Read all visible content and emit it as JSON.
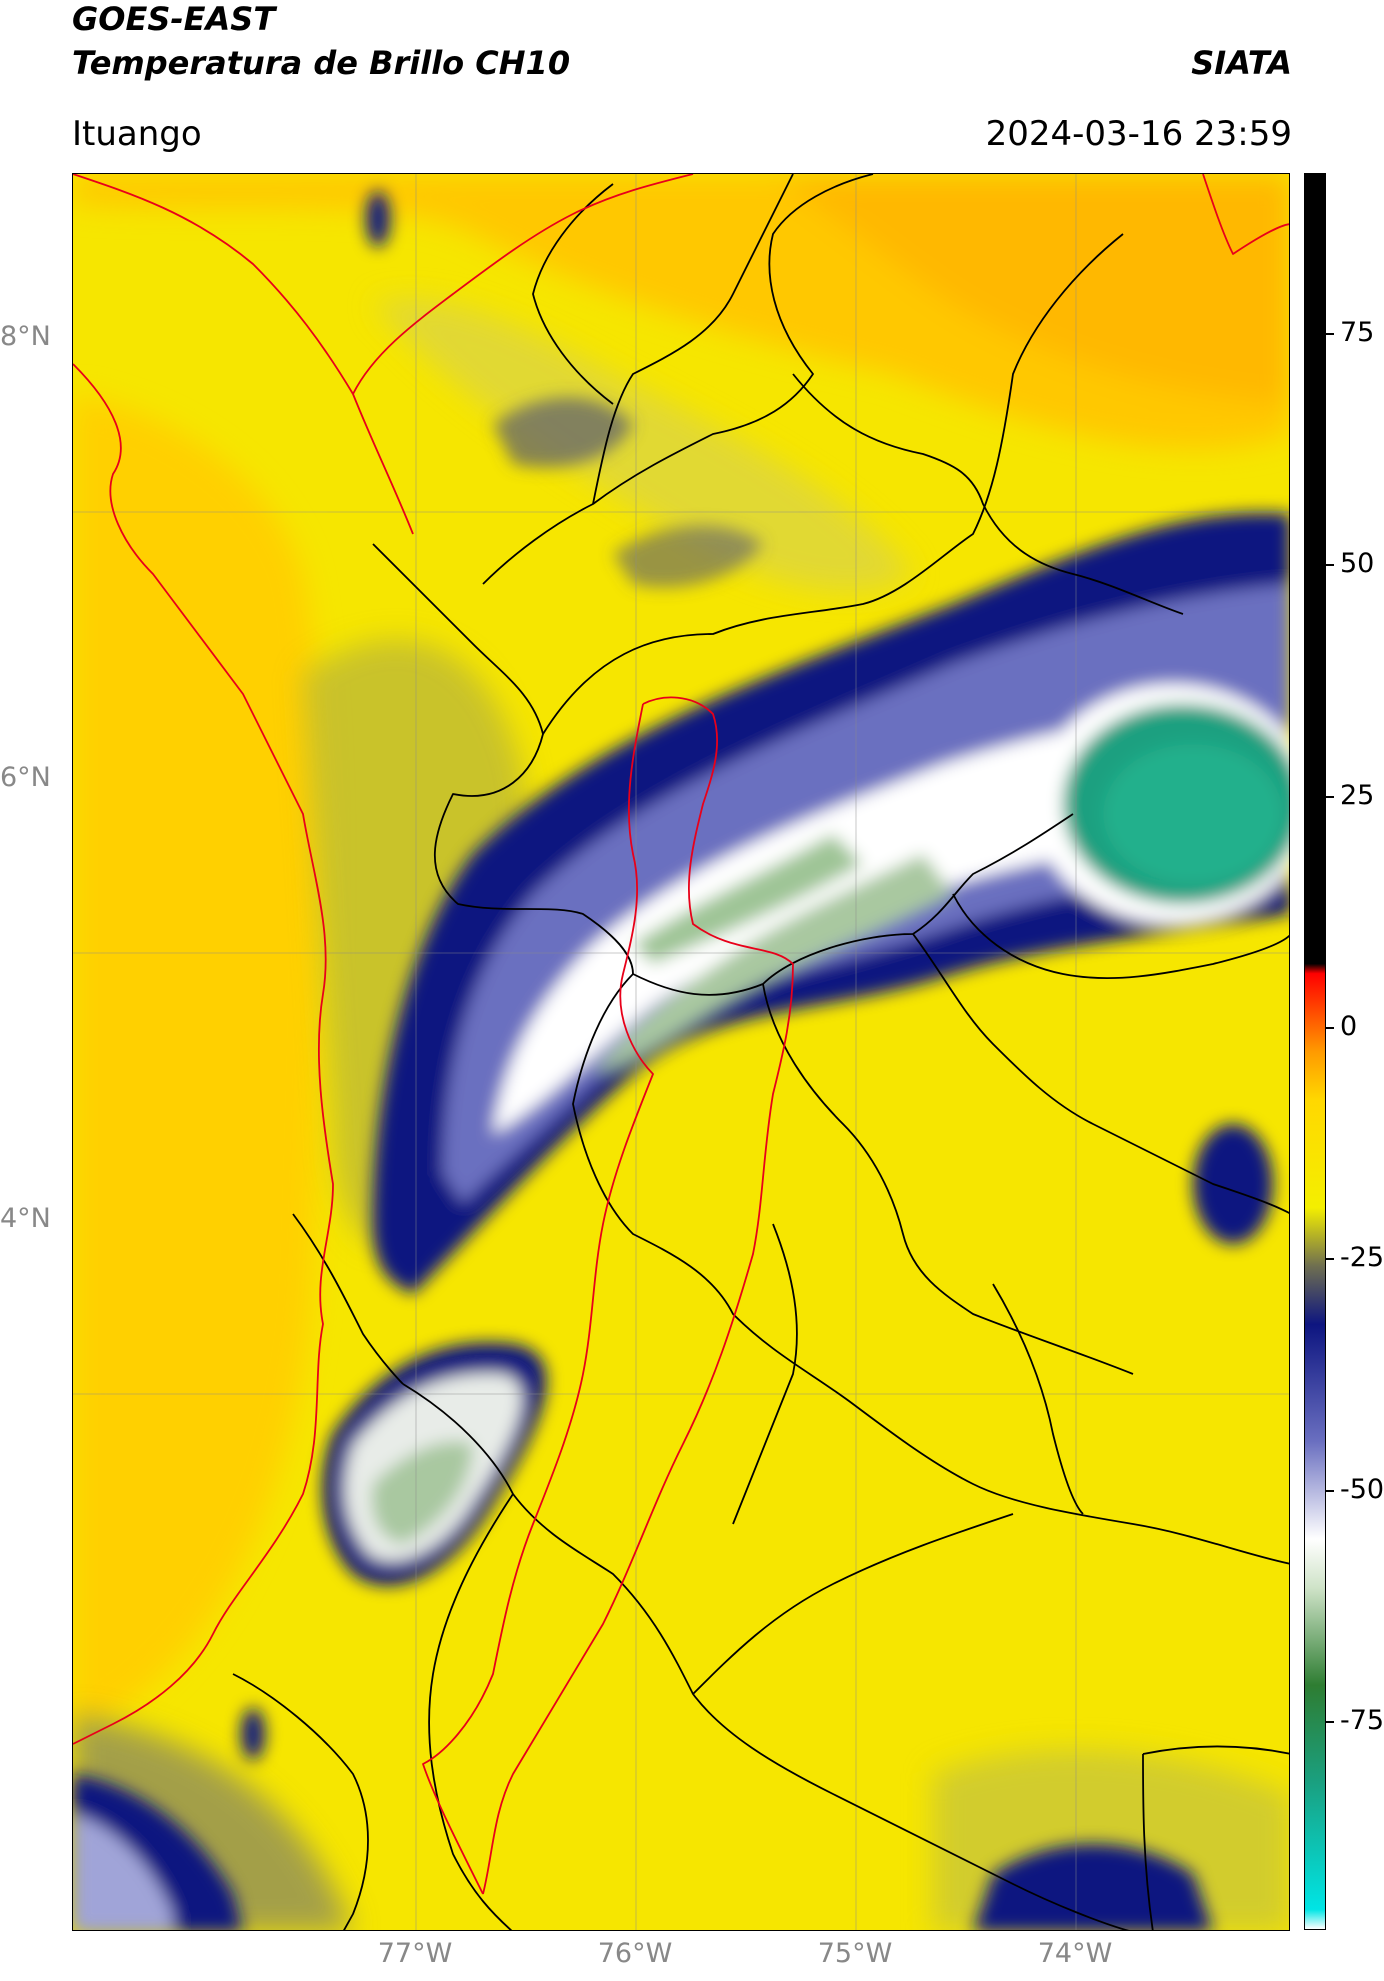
{
  "header": {
    "satellite": "GOES-EAST",
    "product": "Temperatura de Brillo CH10",
    "agency": "SIATA",
    "location": "Ituango",
    "datetime": "2024-03-16 23:59"
  },
  "axes": {
    "lat_labels": [
      "8°N",
      "6°N",
      "4°N"
    ],
    "lon_labels": [
      "77°W",
      "76°W",
      "75°W",
      "74°W"
    ]
  },
  "colorbar": {
    "ticks": [
      "75",
      "50",
      "25",
      "0",
      "-25",
      "-50",
      "-75"
    ],
    "stops": [
      {
        "value": -90,
        "color": "#ffffff"
      },
      {
        "value": -88,
        "color": "#00e5e5"
      },
      {
        "value": -75,
        "color": "#1aa080"
      },
      {
        "value": -65,
        "color": "#2e7d32"
      },
      {
        "value": -55,
        "color": "#cfe3c8"
      },
      {
        "value": -50,
        "color": "#ffffff"
      },
      {
        "value": -40,
        "color": "#6a6fc0"
      },
      {
        "value": -28,
        "color": "#0d1580"
      },
      {
        "value": -22,
        "color": "#6f6f50"
      },
      {
        "value": -16,
        "color": "#f4ef00"
      },
      {
        "value": -5,
        "color": "#ffd800"
      },
      {
        "value": 0,
        "color": "#ff9a00"
      },
      {
        "value": 8,
        "color": "#ff0000"
      },
      {
        "value": 9,
        "color": "#000000"
      },
      {
        "value": 90,
        "color": "#000000"
      }
    ]
  },
  "colors": {
    "cold_cloud_top": "#0d1580",
    "very_cold_core": "#1aa080",
    "warm_background": "#f4ef00",
    "boundary_national": "#e8001a",
    "boundary_regional": "#000000"
  }
}
